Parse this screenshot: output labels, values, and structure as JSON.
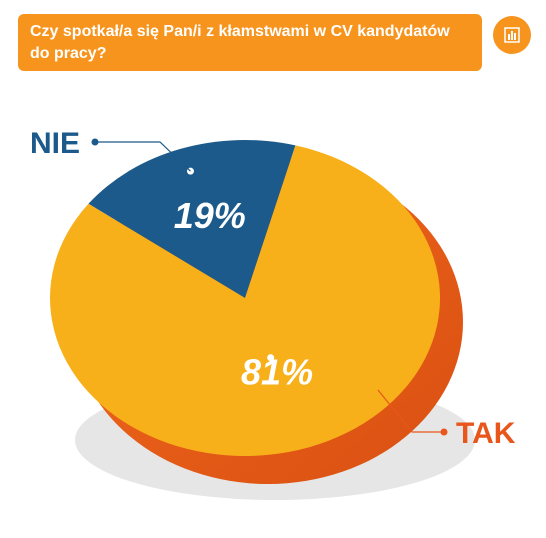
{
  "chart_data": {
    "type": "pie",
    "title": "Czy spotkał/a się Pan/i z kłamstwami  w CV kandydatów do pracy?",
    "categories": [
      "NIE",
      "TAK"
    ],
    "values": [
      19,
      81
    ],
    "value_labels": [
      "19%",
      "81%"
    ],
    "colors": [
      "#1b5a8a",
      "#f8b01a"
    ]
  }
}
